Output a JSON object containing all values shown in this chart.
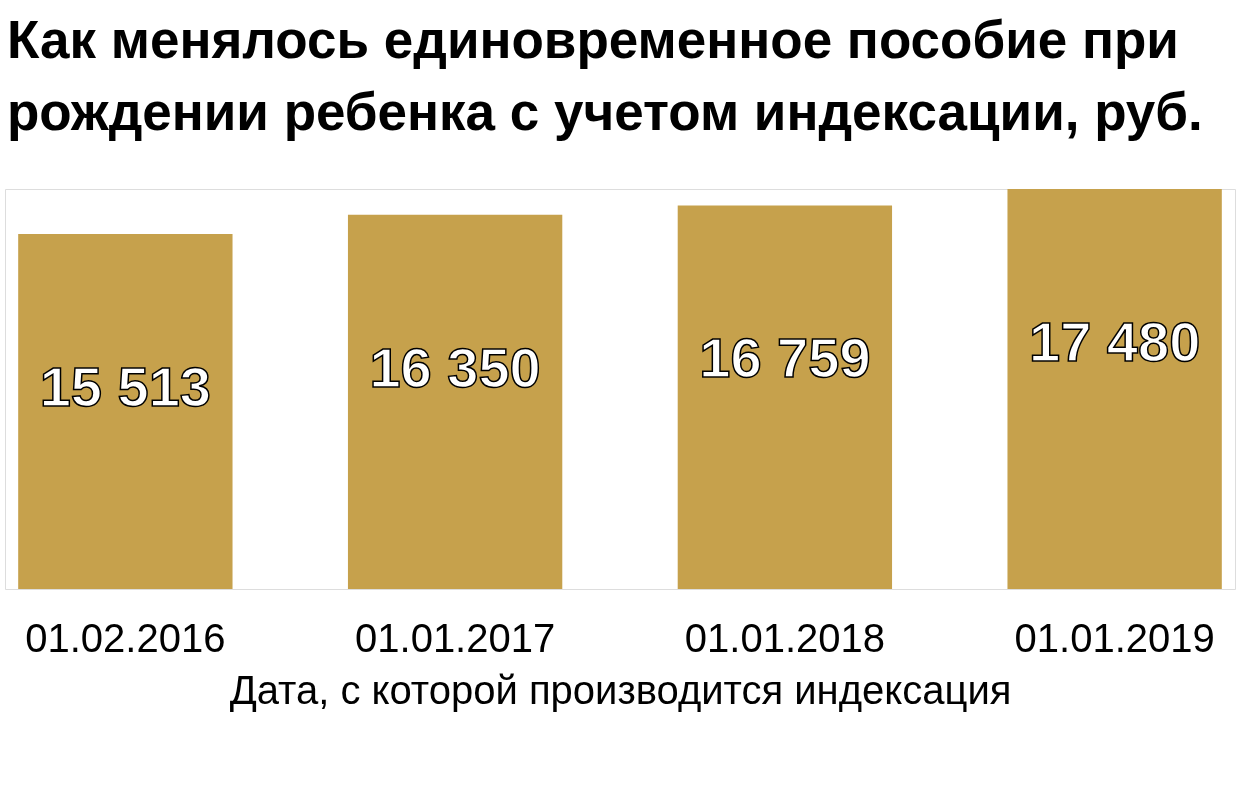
{
  "chart_data": {
    "type": "bar",
    "title": "Как менялось единовременное пособие при рождении ребенка с учетом индексации, руб.",
    "xlabel": "Дата, с которой производится индексация",
    "categories": [
      "01.02.2016",
      "01.01.2017",
      "01.01.2018",
      "01.01.2019"
    ],
    "values": [
      15513,
      16350,
      16759,
      17480
    ],
    "value_labels": [
      "15 513",
      "16 350",
      "16 759",
      "17 480"
    ],
    "color": "#c6a14c",
    "tick_labels": "x"
  }
}
